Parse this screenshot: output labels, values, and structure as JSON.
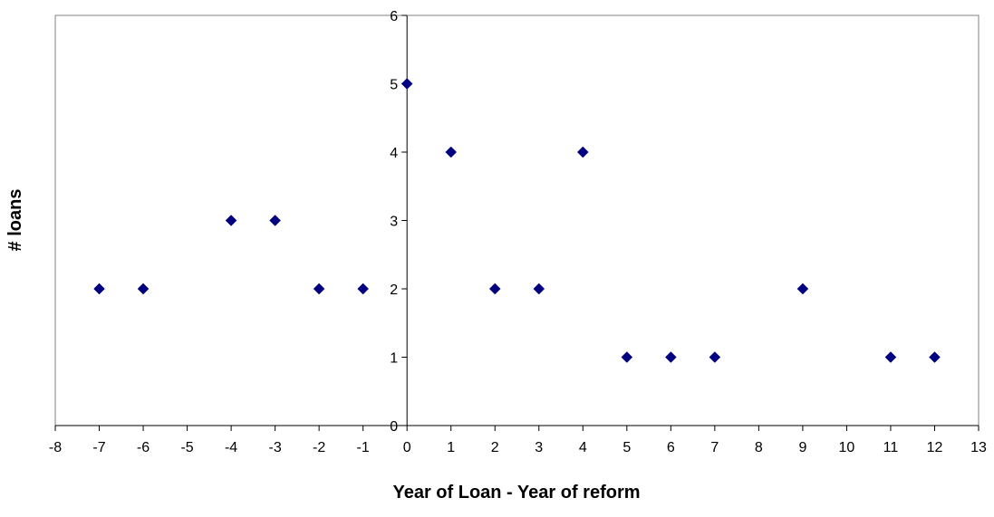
{
  "chart_data": {
    "type": "scatter",
    "title": "",
    "xlabel": "Year of Loan - Year of reform",
    "ylabel": "# loans",
    "xlim": [
      -8,
      13
    ],
    "ylim": [
      0,
      6
    ],
    "x_ticks": [
      -8,
      -7,
      -6,
      -5,
      -4,
      -3,
      -2,
      -1,
      0,
      1,
      2,
      3,
      4,
      5,
      6,
      7,
      8,
      9,
      10,
      11,
      12,
      13
    ],
    "y_ticks": [
      0,
      1,
      2,
      3,
      4,
      5,
      6
    ],
    "marker": "diamond",
    "marker_color": "#000080",
    "grid": false,
    "legend": "none",
    "series": [
      {
        "x": [
          -7,
          -6,
          -4,
          -3,
          -2,
          -1,
          0,
          1,
          2,
          3,
          4,
          5,
          6,
          7,
          9,
          11,
          12
        ],
        "y": [
          2,
          2,
          3,
          3,
          2,
          2,
          5,
          4,
          2,
          2,
          4,
          1,
          1,
          1,
          2,
          1,
          1
        ]
      }
    ]
  }
}
